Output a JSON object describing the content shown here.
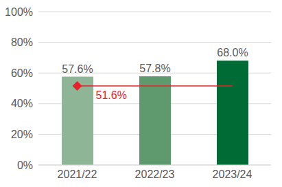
{
  "chart_data": {
    "type": "bar",
    "categories": [
      "2021/22",
      "2022/23",
      "2023/24"
    ],
    "series": [
      {
        "type": "bar",
        "colors": [
          "#8db596",
          "#5f9a6f",
          "#006b35"
        ],
        "values": [
          57.6,
          57.8,
          68.0
        ],
        "value_labels": [
          "57.6%",
          "57.8%",
          "68.0%"
        ]
      },
      {
        "type": "line",
        "color": "#e8202a",
        "marker": "diamond",
        "values": [
          51.6,
          51.6,
          51.6
        ],
        "value_labels": [
          "51.6%",
          null,
          null
        ]
      }
    ],
    "ylim": [
      0,
      100
    ],
    "yticks": [
      {
        "value": 0,
        "label": "0%"
      },
      {
        "value": 20,
        "label": "20%"
      },
      {
        "value": 40,
        "label": "40%"
      },
      {
        "value": 60,
        "label": "60%"
      },
      {
        "value": 80,
        "label": "80%"
      },
      {
        "value": 100,
        "label": "100%"
      }
    ],
    "grid": true,
    "data_labels": true
  }
}
